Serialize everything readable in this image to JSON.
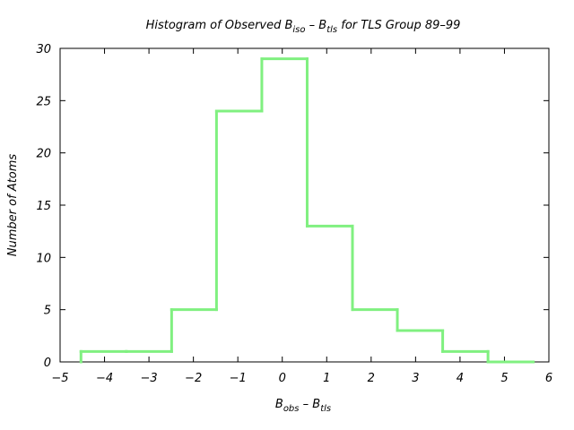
{
  "chart_data": {
    "type": "bar",
    "style": "step-histogram",
    "title": {
      "pre": "Histogram of Observed B",
      "sub1": "iso",
      "mid": " – B",
      "sub2": "tls",
      "post": " for TLS Group 89–99"
    },
    "xlabel": {
      "pre": "B",
      "sub1": "obs",
      "mid": " – B",
      "sub2": "tls"
    },
    "ylabel": "Number of Atoms",
    "xlim": [
      -5,
      6
    ],
    "ylim": [
      0,
      30
    ],
    "x_ticks": [
      -5,
      -4,
      -3,
      -2,
      -1,
      0,
      1,
      2,
      3,
      4,
      5,
      6
    ],
    "x_tick_labels": [
      "−5",
      "−4",
      "−3",
      "−2",
      "−1",
      "0",
      "1",
      "2",
      "3",
      "4",
      "5",
      "6"
    ],
    "y_ticks": [
      0,
      5,
      10,
      15,
      20,
      25,
      30
    ],
    "y_tick_labels": [
      "0",
      "5",
      "10",
      "15",
      "20",
      "25",
      "30"
    ],
    "bin_edges": [
      -4.53,
      -3.51,
      -2.49,
      -1.48,
      -0.46,
      0.56,
      1.58,
      2.59,
      3.61,
      4.63,
      5.65
    ],
    "values": [
      1,
      1,
      5,
      24,
      29,
      13,
      5,
      3,
      1,
      0
    ],
    "series_color": "#80f080",
    "grid": false,
    "legend": "none"
  }
}
